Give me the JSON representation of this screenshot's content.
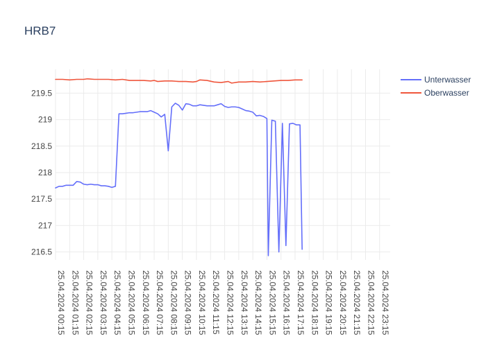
{
  "chart_data": {
    "type": "line",
    "title": "HRB7",
    "xlabel": "",
    "ylabel": "",
    "grid": true,
    "legend_position": "top-right",
    "x_range": [
      0,
      23.75
    ],
    "y_range": [
      216.35,
      219.95
    ],
    "y_ticks": [
      216.5,
      217,
      217.5,
      218,
      218.5,
      219,
      219.5
    ],
    "y_tick_labels": [
      "216.5",
      "217",
      "217.5",
      "218",
      "218.5",
      "219",
      "219.5"
    ],
    "x_ticks": [
      0,
      1,
      2,
      3,
      4,
      5,
      6,
      7,
      8,
      9,
      10,
      11,
      12,
      13,
      14,
      15,
      16,
      17,
      18,
      19,
      20,
      21,
      22,
      23
    ],
    "x_tick_labels": [
      "25.04.2024 00:15",
      "25.04.2024 01:15",
      "25.04.2024 02:15",
      "25.04.2024 03:15",
      "25.04.2024 04:15",
      "25.04.2024 05:15",
      "25.04.2024 06:15",
      "25.04.2024 07:15",
      "25.04.2024 08:15",
      "25.04.2024 09:15",
      "25.04.2024 10:15",
      "25.04.2024 11:15",
      "25.04.2024 12:15",
      "25.04.2024 13:15",
      "25.04.2024 14:15",
      "25.04.2024 15:15",
      "25.04.2024 16:15",
      "25.04.2024 17:15",
      "25.04.2024 18:15",
      "25.04.2024 19:15",
      "25.04.2024 20:15",
      "25.04.2024 21:15",
      "25.04.2024 22:15",
      "25.04.2024 23:15"
    ],
    "series": [
      {
        "name": "Unterwasser",
        "color": "#636efa",
        "points": [
          [
            0,
            217.71
          ],
          [
            0.25,
            217.74
          ],
          [
            0.5,
            217.74
          ],
          [
            0.75,
            217.76
          ],
          [
            1.0,
            217.76
          ],
          [
            1.25,
            217.76
          ],
          [
            1.5,
            217.83
          ],
          [
            1.75,
            217.82
          ],
          [
            2.0,
            217.78
          ],
          [
            2.25,
            217.77
          ],
          [
            2.5,
            217.78
          ],
          [
            2.75,
            217.77
          ],
          [
            3.0,
            217.77
          ],
          [
            3.25,
            217.75
          ],
          [
            3.5,
            217.75
          ],
          [
            3.75,
            217.74
          ],
          [
            4.0,
            217.72
          ],
          [
            4.25,
            217.74
          ],
          [
            4.5,
            219.11
          ],
          [
            4.75,
            219.11
          ],
          [
            5.0,
            219.12
          ],
          [
            5.25,
            219.13
          ],
          [
            5.5,
            219.13
          ],
          [
            5.75,
            219.14
          ],
          [
            6.0,
            219.15
          ],
          [
            6.25,
            219.15
          ],
          [
            6.5,
            219.15
          ],
          [
            6.75,
            219.17
          ],
          [
            7.0,
            219.14
          ],
          [
            7.25,
            219.11
          ],
          [
            7.5,
            219.05
          ],
          [
            7.75,
            219.1
          ],
          [
            8.0,
            218.41
          ],
          [
            8.25,
            219.24
          ],
          [
            8.5,
            219.31
          ],
          [
            8.75,
            219.27
          ],
          [
            9.0,
            219.18
          ],
          [
            9.25,
            219.3
          ],
          [
            9.5,
            219.29
          ],
          [
            9.75,
            219.26
          ],
          [
            10.0,
            219.26
          ],
          [
            10.25,
            219.28
          ],
          [
            10.5,
            219.27
          ],
          [
            10.75,
            219.26
          ],
          [
            11.0,
            219.26
          ],
          [
            11.25,
            219.26
          ],
          [
            11.5,
            219.28
          ],
          [
            11.75,
            219.3
          ],
          [
            12.0,
            219.25
          ],
          [
            12.25,
            219.23
          ],
          [
            12.5,
            219.24
          ],
          [
            12.75,
            219.24
          ],
          [
            13.0,
            219.23
          ],
          [
            13.25,
            219.2
          ],
          [
            13.5,
            219.17
          ],
          [
            13.75,
            219.16
          ],
          [
            14.0,
            219.14
          ],
          [
            14.25,
            219.07
          ],
          [
            14.5,
            219.08
          ],
          [
            14.75,
            219.06
          ],
          [
            15.0,
            219.02
          ],
          [
            15.1,
            216.43
          ],
          [
            15.35,
            218.99
          ],
          [
            15.6,
            218.97
          ],
          [
            15.85,
            216.5
          ],
          [
            16.1,
            218.93
          ],
          [
            16.35,
            216.62
          ],
          [
            16.6,
            218.92
          ],
          [
            16.85,
            218.93
          ],
          [
            17.1,
            218.9
          ],
          [
            17.35,
            218.9
          ],
          [
            17.5,
            216.55
          ]
        ]
      },
      {
        "name": "Oberwasser",
        "color": "#ef553b",
        "points": [
          [
            0,
            219.76
          ],
          [
            0.5,
            219.76
          ],
          [
            1.0,
            219.75
          ],
          [
            1.5,
            219.76
          ],
          [
            2.0,
            219.76
          ],
          [
            2.25,
            219.77
          ],
          [
            2.75,
            219.76
          ],
          [
            3.25,
            219.76
          ],
          [
            3.75,
            219.76
          ],
          [
            4.25,
            219.75
          ],
          [
            4.75,
            219.76
          ],
          [
            5.25,
            219.74
          ],
          [
            5.75,
            219.74
          ],
          [
            6.25,
            219.74
          ],
          [
            6.75,
            219.73
          ],
          [
            7.0,
            219.74
          ],
          [
            7.25,
            219.72
          ],
          [
            7.75,
            219.73
          ],
          [
            8.25,
            219.73
          ],
          [
            8.75,
            219.72
          ],
          [
            9.25,
            219.72
          ],
          [
            9.75,
            219.71
          ],
          [
            10.0,
            219.72
          ],
          [
            10.25,
            219.75
          ],
          [
            10.75,
            219.74
          ],
          [
            11.25,
            219.71
          ],
          [
            11.75,
            219.7
          ],
          [
            12.25,
            219.72
          ],
          [
            12.5,
            219.69
          ],
          [
            13.0,
            219.71
          ],
          [
            13.5,
            219.71
          ],
          [
            14.0,
            219.72
          ],
          [
            14.5,
            219.71
          ],
          [
            15.0,
            219.72
          ],
          [
            15.5,
            219.73
          ],
          [
            16.0,
            219.74
          ],
          [
            16.5,
            219.74
          ],
          [
            17.0,
            219.75
          ],
          [
            17.5,
            219.75
          ]
        ]
      }
    ]
  }
}
